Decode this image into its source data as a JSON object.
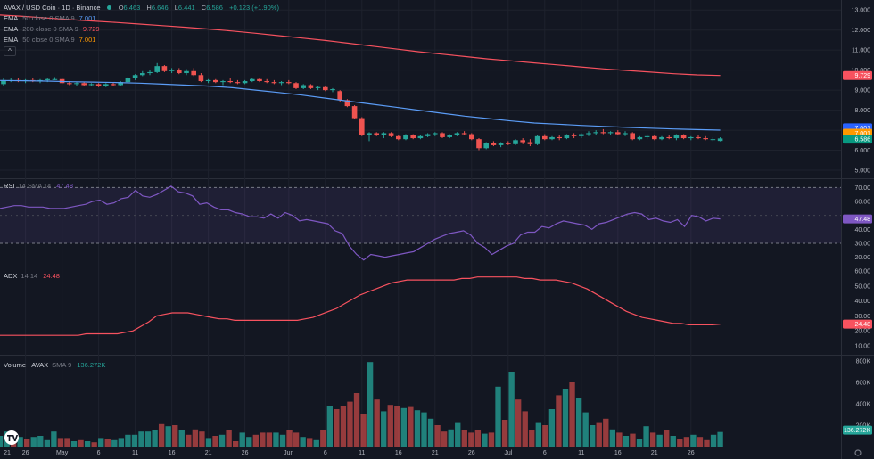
{
  "header": {
    "symbol": "AVAX / USD Coin · 1D · Binance",
    "ohlc": {
      "o_label": "O",
      "o": "6.463",
      "h_label": "H",
      "h": "6.646",
      "l_label": "L",
      "l": "6.441",
      "c_label": "C",
      "c": "6.586",
      "change": "+0.123 (+1.90%)"
    }
  },
  "indicators": [
    {
      "name": "EMA",
      "params": "50 close 0 SMA 9",
      "value": "7.001",
      "color": "#5b9cf6"
    },
    {
      "name": "EMA",
      "params": "200 close 0 SMA 9",
      "value": "9.729",
      "color": "#f7525f"
    },
    {
      "name": "EMA",
      "params": "50 close 0 SMA 9",
      "value": "7.001",
      "color": "#ff9800"
    }
  ],
  "collapse_label": "^",
  "rsi": {
    "name": "RSI",
    "params": "14 SMA 14",
    "value": "47.48",
    "color": "#7e57c2"
  },
  "adx": {
    "name": "ADX",
    "params": "14 14",
    "value": "24.48",
    "color": "#f7525f"
  },
  "volume": {
    "name": "Volume · AVAX",
    "params": "SMA 9",
    "value": "136.272K",
    "color": "#26a69a"
  },
  "price_axis": {
    "ticks": [
      "13.000",
      "12.000",
      "11.000",
      "10.000",
      "9.000",
      "8.000",
      "7.000",
      "6.000",
      "5.000"
    ],
    "badges": [
      {
        "label": "9.729",
        "value": 9.729,
        "color": "#f7525f"
      },
      {
        "label": "7.001",
        "value": 7.12,
        "color": "#2962ff"
      },
      {
        "label": "7.001",
        "value": 6.85,
        "color": "#ff9800"
      },
      {
        "label": "6.586",
        "value": 6.55,
        "color": "#089981"
      }
    ]
  },
  "rsi_axis": {
    "ticks": [
      "70.00",
      "60.00",
      "40.00",
      "30.00",
      "20.00"
    ],
    "badge": "47.48"
  },
  "adx_axis": {
    "ticks": [
      "60.00",
      "50.00",
      "40.00",
      "30.00",
      "20.00",
      "10.00"
    ],
    "badge": "24.48"
  },
  "volume_axis": {
    "ticks": [
      "800K",
      "600K",
      "400K",
      "200K"
    ],
    "badge": "136.272K"
  },
  "time_axis": {
    "labels": [
      {
        "label": "21",
        "i": -2
      },
      {
        "label": "26",
        "i": 3
      },
      {
        "label": "May",
        "i": 8
      },
      {
        "label": "6",
        "i": 13
      },
      {
        "label": "11",
        "i": 18
      },
      {
        "label": "16",
        "i": 23
      },
      {
        "label": "21",
        "i": 28
      },
      {
        "label": "26",
        "i": 33
      },
      {
        "label": "Jun",
        "i": 39
      },
      {
        "label": "6",
        "i": 44
      },
      {
        "label": "11",
        "i": 49
      },
      {
        "label": "16",
        "i": 54
      },
      {
        "label": "21",
        "i": 59
      },
      {
        "label": "26",
        "i": 64
      },
      {
        "label": "Jul",
        "i": 69
      },
      {
        "label": "6",
        "i": 74
      },
      {
        "label": "11",
        "i": 79
      },
      {
        "label": "16",
        "i": 84
      },
      {
        "label": "21",
        "i": 89
      },
      {
        "label": "26",
        "i": 94
      }
    ]
  },
  "chart_data": {
    "type": "candlestick",
    "title": "AVAX / USD Coin · 1D · Binance",
    "candles": [
      [
        9.3,
        9.6,
        9.2,
        9.5
      ],
      [
        9.5,
        9.6,
        9.4,
        9.5
      ],
      [
        9.5,
        9.6,
        9.4,
        9.45
      ],
      [
        9.45,
        9.55,
        9.35,
        9.5
      ],
      [
        9.5,
        9.6,
        9.4,
        9.45
      ],
      [
        9.45,
        9.55,
        9.35,
        9.5
      ],
      [
        9.5,
        9.6,
        9.4,
        9.55
      ],
      [
        9.55,
        9.65,
        9.5,
        9.55
      ],
      [
        9.55,
        9.6,
        9.3,
        9.35
      ],
      [
        9.35,
        9.45,
        9.25,
        9.3
      ],
      [
        9.3,
        9.4,
        9.2,
        9.35
      ],
      [
        9.35,
        9.4,
        9.2,
        9.25
      ],
      [
        9.25,
        9.35,
        9.2,
        9.3
      ],
      [
        9.3,
        9.35,
        9.15,
        9.2
      ],
      [
        9.2,
        9.35,
        9.15,
        9.3
      ],
      [
        9.3,
        9.4,
        9.2,
        9.25
      ],
      [
        9.25,
        9.45,
        9.2,
        9.4
      ],
      [
        9.4,
        9.65,
        9.35,
        9.6
      ],
      [
        9.6,
        9.8,
        9.5,
        9.75
      ],
      [
        9.75,
        9.95,
        9.7,
        9.85
      ],
      [
        9.85,
        10.0,
        9.75,
        9.9
      ],
      [
        9.9,
        10.35,
        9.85,
        10.2
      ],
      [
        10.2,
        10.25,
        9.9,
        9.95
      ],
      [
        9.95,
        10.1,
        9.85,
        10.0
      ],
      [
        10.0,
        10.1,
        9.8,
        9.85
      ],
      [
        9.85,
        10.05,
        9.75,
        9.95
      ],
      [
        9.95,
        10.1,
        9.7,
        9.75
      ],
      [
        9.75,
        9.85,
        9.4,
        9.45
      ],
      [
        9.45,
        9.55,
        9.35,
        9.5
      ],
      [
        9.5,
        9.55,
        9.35,
        9.4
      ],
      [
        9.4,
        9.5,
        9.25,
        9.45
      ],
      [
        9.45,
        9.6,
        9.35,
        9.4
      ],
      [
        9.4,
        9.5,
        9.3,
        9.35
      ],
      [
        9.35,
        9.5,
        9.3,
        9.45
      ],
      [
        9.45,
        9.6,
        9.4,
        9.55
      ],
      [
        9.55,
        9.6,
        9.4,
        9.45
      ],
      [
        9.45,
        9.55,
        9.35,
        9.4
      ],
      [
        9.4,
        9.5,
        9.3,
        9.35
      ],
      [
        9.35,
        9.45,
        9.25,
        9.4
      ],
      [
        9.4,
        9.5,
        9.3,
        9.35
      ],
      [
        9.35,
        9.4,
        9.05,
        9.1
      ],
      [
        9.1,
        9.3,
        9.05,
        9.25
      ],
      [
        9.25,
        9.3,
        9.05,
        9.1
      ],
      [
        9.1,
        9.2,
        9.0,
        9.15
      ],
      [
        9.15,
        9.2,
        8.95,
        9.0
      ],
      [
        9.0,
        9.1,
        8.9,
        9.05
      ],
      [
        8.95,
        9.0,
        8.4,
        8.5
      ],
      [
        8.5,
        8.55,
        8.15,
        8.2
      ],
      [
        8.2,
        8.25,
        7.55,
        7.6
      ],
      [
        7.6,
        7.65,
        6.7,
        6.75
      ],
      [
        6.75,
        6.9,
        6.45,
        6.85
      ],
      [
        6.85,
        6.9,
        6.7,
        6.75
      ],
      [
        6.75,
        6.9,
        6.6,
        6.85
      ],
      [
        6.85,
        6.9,
        6.65,
        6.7
      ],
      [
        6.7,
        6.75,
        6.5,
        6.55
      ],
      [
        6.55,
        6.8,
        6.5,
        6.75
      ],
      [
        6.75,
        6.8,
        6.55,
        6.6
      ],
      [
        6.6,
        6.75,
        6.55,
        6.7
      ],
      [
        6.7,
        6.85,
        6.65,
        6.8
      ],
      [
        6.8,
        6.9,
        6.7,
        6.85
      ],
      [
        6.85,
        6.9,
        6.6,
        6.65
      ],
      [
        6.65,
        6.8,
        6.6,
        6.75
      ],
      [
        6.75,
        6.9,
        6.7,
        6.85
      ],
      [
        6.85,
        6.95,
        6.75,
        6.8
      ],
      [
        6.8,
        6.85,
        6.5,
        6.55
      ],
      [
        6.55,
        6.6,
        6.0,
        6.1
      ],
      [
        6.1,
        6.4,
        6.05,
        6.35
      ],
      [
        6.35,
        6.45,
        6.2,
        6.25
      ],
      [
        6.25,
        6.4,
        6.15,
        6.35
      ],
      [
        6.35,
        6.45,
        6.25,
        6.3
      ],
      [
        6.3,
        6.55,
        6.25,
        6.5
      ],
      [
        6.5,
        6.6,
        6.3,
        6.4
      ],
      [
        6.4,
        6.55,
        6.2,
        6.3
      ],
      [
        6.3,
        6.75,
        6.25,
        6.7
      ],
      [
        6.7,
        6.8,
        6.5,
        6.55
      ],
      [
        6.55,
        6.7,
        6.5,
        6.65
      ],
      [
        6.65,
        6.75,
        6.5,
        6.6
      ],
      [
        6.6,
        6.8,
        6.55,
        6.75
      ],
      [
        6.75,
        6.85,
        6.6,
        6.7
      ],
      [
        6.7,
        6.85,
        6.6,
        6.8
      ],
      [
        6.8,
        6.95,
        6.7,
        6.85
      ],
      [
        6.85,
        7.0,
        6.75,
        6.9
      ],
      [
        6.9,
        7.05,
        6.8,
        6.85
      ],
      [
        6.85,
        6.95,
        6.75,
        6.9
      ],
      [
        6.9,
        7.0,
        6.75,
        6.8
      ],
      [
        6.8,
        6.95,
        6.7,
        6.85
      ],
      [
        6.85,
        6.9,
        6.5,
        6.55
      ],
      [
        6.55,
        6.7,
        6.5,
        6.65
      ],
      [
        6.65,
        6.8,
        6.55,
        6.7
      ],
      [
        6.7,
        6.75,
        6.5,
        6.55
      ],
      [
        6.55,
        6.7,
        6.5,
        6.65
      ],
      [
        6.65,
        6.75,
        6.55,
        6.6
      ],
      [
        6.6,
        6.8,
        6.5,
        6.75
      ],
      [
        6.75,
        6.8,
        6.55,
        6.6
      ],
      [
        6.6,
        6.7,
        6.5,
        6.65
      ],
      [
        6.65,
        6.75,
        6.55,
        6.6
      ],
      [
        6.6,
        6.7,
        6.5,
        6.55
      ],
      [
        6.55,
        6.65,
        6.45,
        6.55
      ],
      [
        6.463,
        6.646,
        6.441,
        6.586
      ]
    ],
    "ema50": [
      9.48,
      9.47,
      9.45,
      9.42,
      9.4,
      9.38,
      9.35,
      9.3,
      9.25,
      9.2,
      9.12,
      9.0,
      8.88,
      8.75,
      8.6,
      8.45,
      8.3,
      8.15,
      8.0,
      7.85,
      7.7,
      7.58,
      7.46,
      7.36,
      7.3,
      7.24,
      7.19,
      7.14,
      7.1,
      7.06,
      7.03,
      7.001
    ],
    "ema200": [
      12.75,
      12.68,
      12.6,
      12.52,
      12.45,
      12.38,
      12.3,
      12.22,
      12.14,
      12.05,
      11.95,
      11.84,
      11.72,
      11.6,
      11.48,
      11.34,
      11.2,
      11.06,
      10.92,
      10.8,
      10.68,
      10.56,
      10.46,
      10.36,
      10.26,
      10.16,
      10.06,
      9.98,
      9.9,
      9.82,
      9.76,
      9.729
    ],
    "rsi": [
      55,
      56,
      57,
      57,
      56,
      56,
      56,
      55,
      55,
      55,
      56,
      57,
      58,
      60,
      61,
      58,
      59,
      62,
      63,
      68,
      64,
      63,
      65,
      68,
      71,
      67,
      66,
      64,
      58,
      59,
      56,
      54,
      54,
      52,
      51,
      49,
      49,
      48,
      51,
      48,
      52,
      50,
      46,
      47,
      46,
      45,
      44,
      39,
      37,
      28,
      22,
      18,
      22,
      21,
      20,
      21,
      22,
      23,
      24,
      27,
      30,
      33,
      35,
      37,
      38,
      39,
      36,
      30,
      27,
      22,
      25,
      28,
      30,
      36,
      38,
      38,
      42,
      41,
      44,
      46,
      45,
      44,
      43,
      40,
      44,
      45,
      47,
      49,
      51,
      52,
      51,
      47,
      48,
      46,
      45,
      47,
      42,
      50,
      49,
      46,
      48,
      47.48
    ],
    "adx": [
      17,
      17,
      17,
      17,
      17,
      17,
      17,
      17,
      17,
      17,
      17,
      18,
      18,
      18,
      18,
      18,
      19,
      20,
      23,
      26,
      30,
      31,
      32,
      32,
      32,
      31,
      30,
      29,
      28,
      28,
      27,
      27,
      27,
      27,
      27,
      27,
      27,
      27,
      27,
      28,
      29,
      31,
      33,
      35,
      38,
      41,
      44,
      46,
      48,
      50,
      52,
      53,
      54,
      54,
      54,
      54,
      54,
      54,
      54,
      55,
      55,
      56,
      56,
      56,
      56,
      56,
      56,
      55,
      55,
      54,
      54,
      54,
      53,
      52,
      50,
      48,
      45,
      42,
      39,
      36,
      33,
      31,
      29,
      28,
      27,
      26,
      25,
      25,
      24,
      24,
      24,
      24,
      24.48
    ],
    "volume": [
      100,
      140,
      110,
      90,
      70,
      90,
      100,
      60,
      140,
      80,
      80,
      50,
      60,
      50,
      40,
      80,
      70,
      60,
      80,
      110,
      110,
      140,
      140,
      150,
      210,
      190,
      200,
      150,
      110,
      160,
      140,
      80,
      100,
      110,
      150,
      50,
      130,
      90,
      110,
      130,
      130,
      130,
      110,
      150,
      130,
      90,
      80,
      60,
      150,
      380,
      350,
      380,
      420,
      500,
      300,
      790,
      440,
      330,
      390,
      380,
      360,
      370,
      340,
      320,
      260,
      200,
      140,
      160,
      220,
      150,
      130,
      150,
      120,
      130,
      560,
      250,
      700,
      440,
      330,
      150,
      220,
      200,
      350,
      480,
      540,
      600,
      450,
      320,
      200,
      220,
      260,
      160,
      130,
      100,
      120,
      70,
      190,
      130,
      110,
      150,
      100,
      70,
      90,
      110,
      90,
      60,
      110,
      136
    ]
  }
}
